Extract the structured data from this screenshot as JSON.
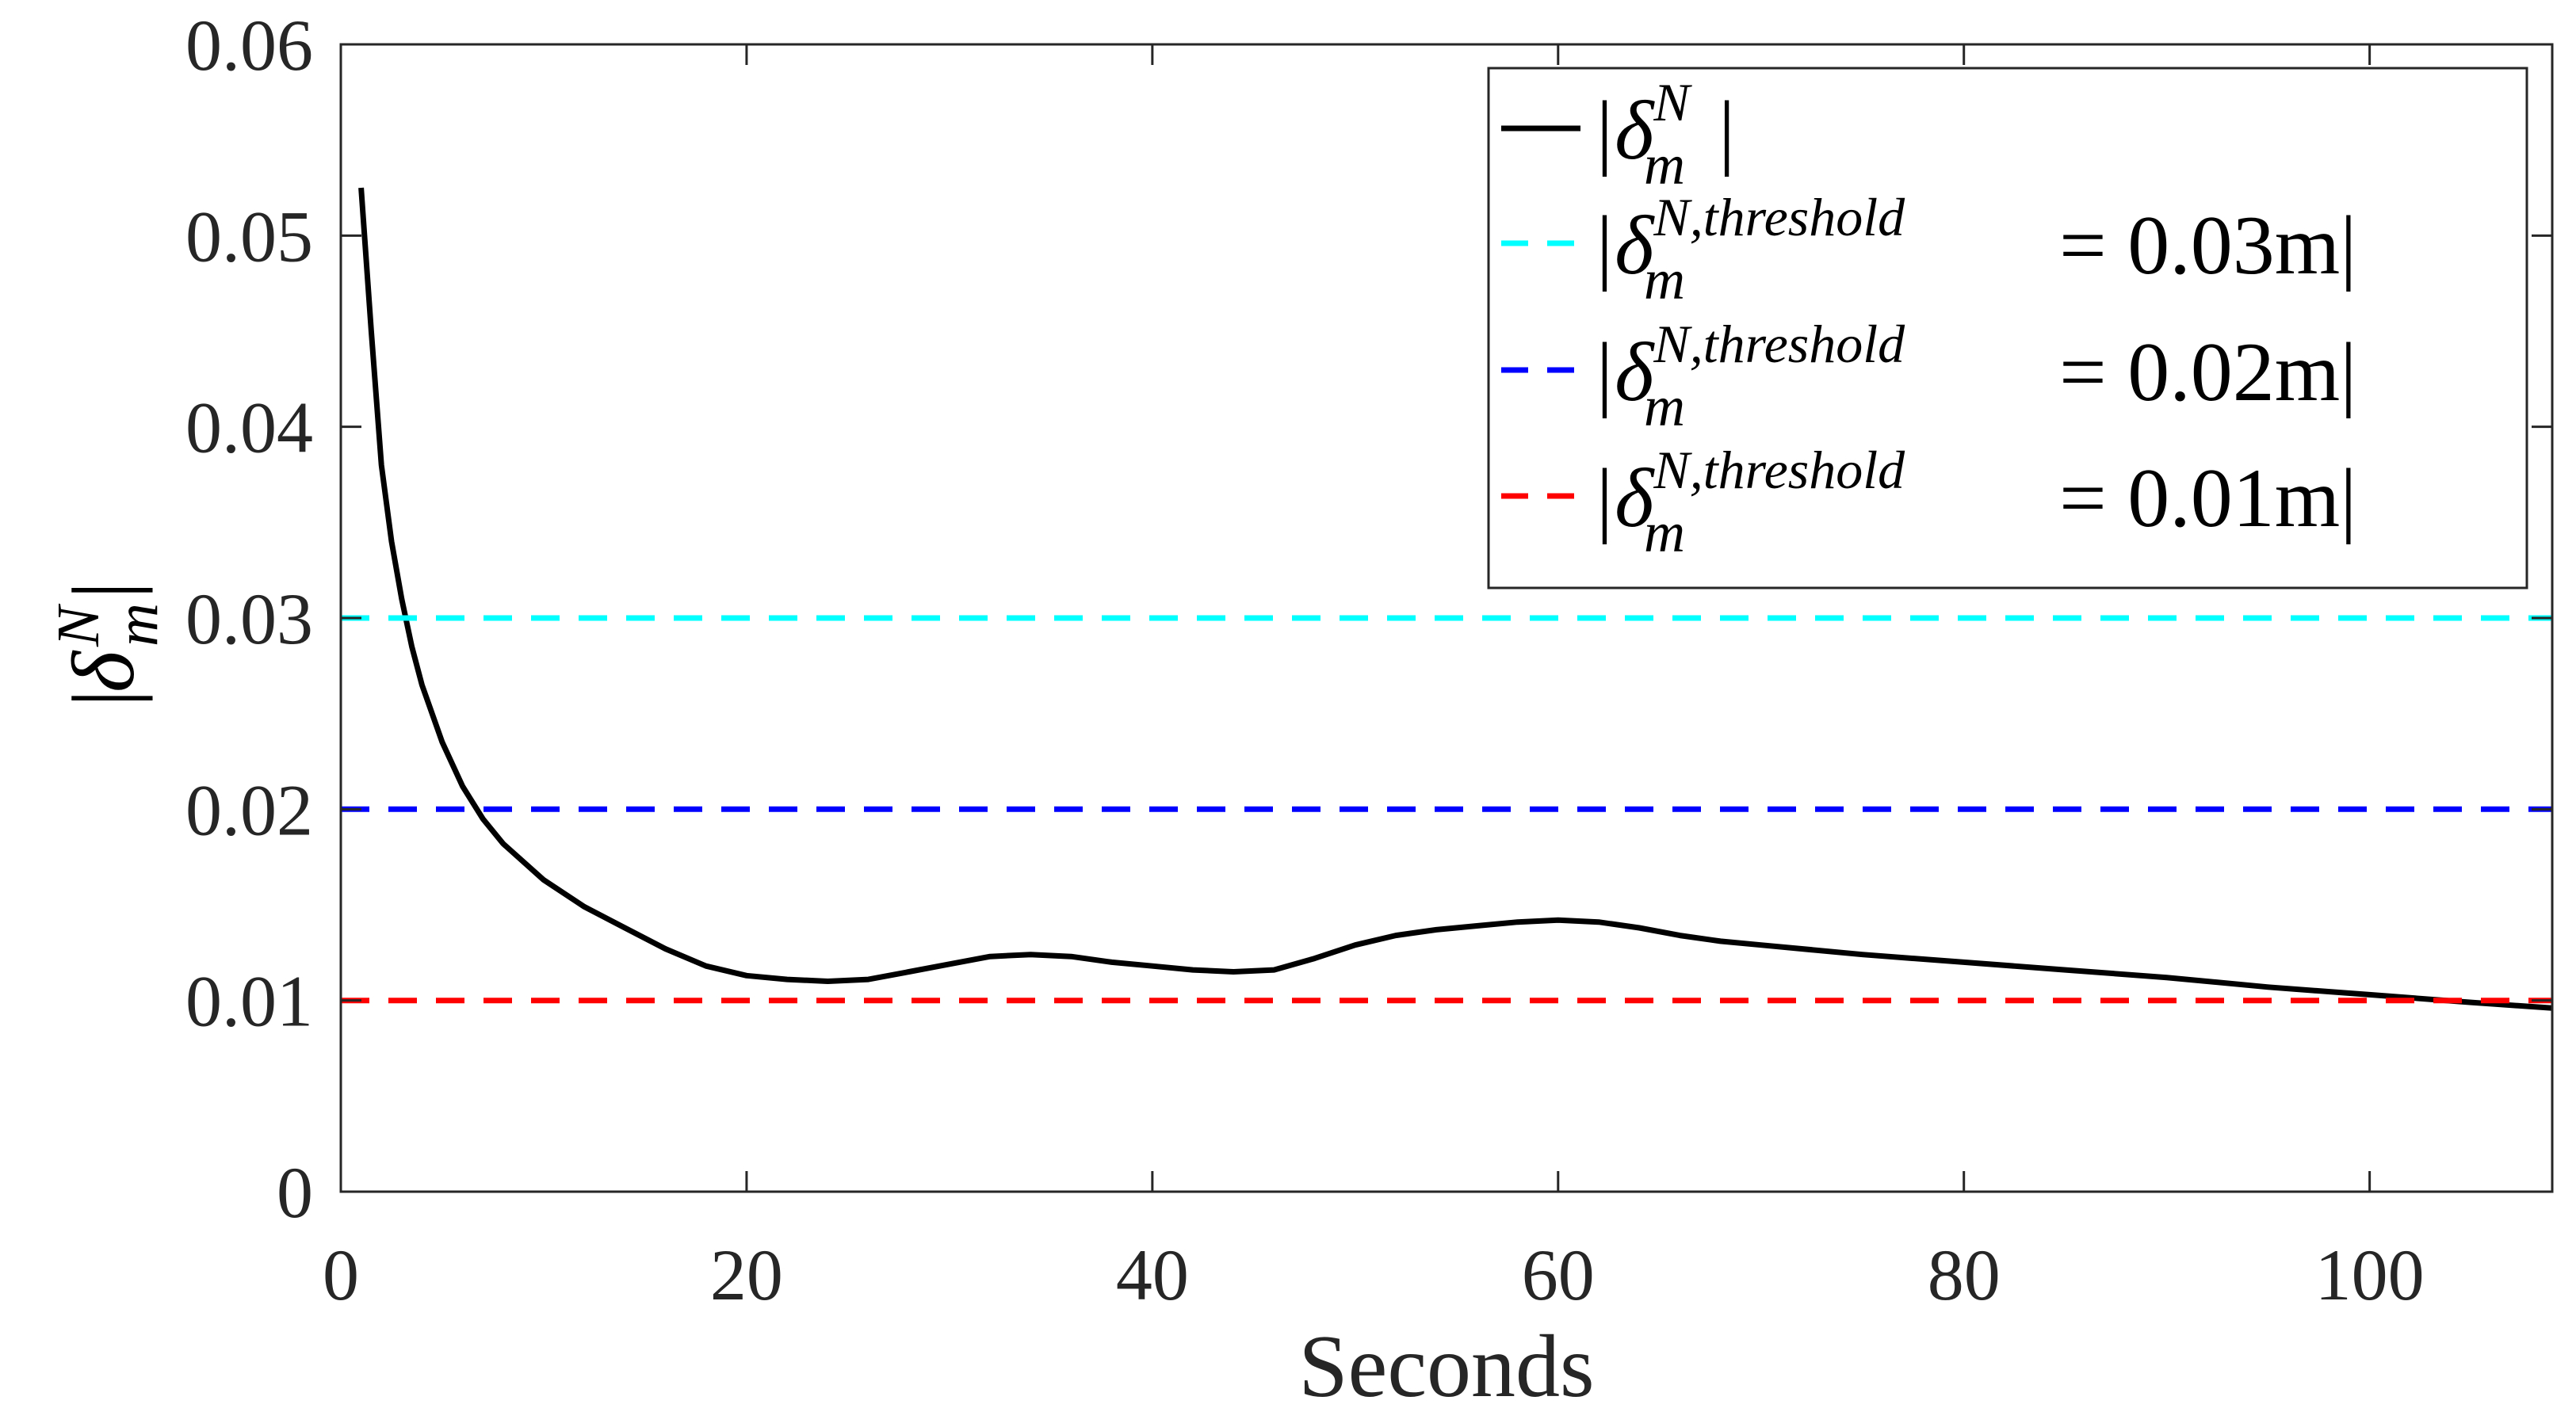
{
  "chart_data": {
    "type": "line",
    "title": "",
    "xlabel": "Seconds",
    "ylabel": "|δ",
    "ylabel_sup": "N",
    "ylabel_sub": "m",
    "ylabel_close": "|",
    "xlim": [
      0,
      109
    ],
    "ylim": [
      0,
      0.06
    ],
    "xticks": [
      0,
      20,
      40,
      60,
      80,
      100
    ],
    "xtick_labels": [
      "0",
      "20",
      "40",
      "60",
      "80",
      "100"
    ],
    "yticks": [
      0,
      0.01,
      0.02,
      0.03,
      0.04,
      0.05,
      0.06
    ],
    "ytick_labels": [
      "0",
      "0.01",
      "0.02",
      "0.03",
      "0.04",
      "0.05",
      "0.06"
    ],
    "grid": false,
    "legend_position": "top-right",
    "series": [
      {
        "name": "|δm N|",
        "style": "solid",
        "color": "#000000",
        "x": [
          1,
          1.5,
          2,
          2.5,
          3,
          3.5,
          4,
          5,
          6,
          7,
          8,
          10,
          12,
          14,
          16,
          18,
          20,
          22,
          24,
          26,
          28,
          30,
          32,
          34,
          36,
          38,
          40,
          42,
          44,
          46,
          48,
          50,
          52,
          54,
          56,
          58,
          60,
          62,
          64,
          66,
          68,
          70,
          75,
          80,
          85,
          90,
          95,
          100,
          105,
          109
        ],
        "y": [
          0.0525,
          0.045,
          0.038,
          0.034,
          0.031,
          0.0285,
          0.0265,
          0.0235,
          0.0212,
          0.0195,
          0.0182,
          0.0163,
          0.0149,
          0.0138,
          0.0127,
          0.0118,
          0.0113,
          0.0111,
          0.011,
          0.0111,
          0.0115,
          0.0119,
          0.0123,
          0.0124,
          0.0123,
          0.012,
          0.0118,
          0.0116,
          0.0115,
          0.0116,
          0.0122,
          0.0129,
          0.0134,
          0.0137,
          0.0139,
          0.0141,
          0.0142,
          0.0141,
          0.0138,
          0.0134,
          0.0131,
          0.0129,
          0.0124,
          0.012,
          0.0116,
          0.0112,
          0.0107,
          0.0103,
          0.0099,
          0.0096
        ]
      },
      {
        "name": "threshold 0.03",
        "style": "dashed",
        "color": "#00ffff",
        "x": [
          0,
          109
        ],
        "y": [
          0.03,
          0.03
        ]
      },
      {
        "name": "threshold 0.02",
        "style": "dashed",
        "color": "#0000ff",
        "x": [
          0,
          109
        ],
        "y": [
          0.02,
          0.02
        ]
      },
      {
        "name": "threshold 0.01",
        "style": "dashed",
        "color": "#ff0000",
        "x": [
          0,
          109
        ],
        "y": [
          0.01,
          0.01
        ]
      }
    ],
    "legend": [
      {
        "prefix": "|δ",
        "sup": "N",
        "sub": "m",
        "suffix": "|"
      },
      {
        "prefix": "|δ",
        "sup": "N,threshold",
        "sub": "m",
        "suffix": "= 0.03m|"
      },
      {
        "prefix": "|δ",
        "sup": "N,threshold",
        "sub": "m",
        "suffix": "= 0.02m|"
      },
      {
        "prefix": "|δ",
        "sup": "N,threshold",
        "sub": "m",
        "suffix": "= 0.01m|"
      }
    ]
  }
}
